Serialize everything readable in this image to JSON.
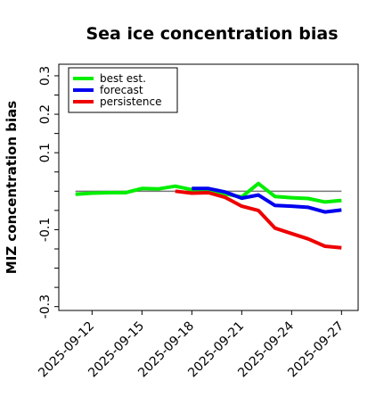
{
  "chart_data": {
    "type": "line",
    "title": "Sea ice concentration bias",
    "xlabel": "",
    "ylabel": "MIZ concentration bias",
    "xlim": [
      "2025-09-10",
      "2025-09-28"
    ],
    "ylim": [
      -0.31,
      0.33
    ],
    "yticks": [
      {
        "value": 0.3,
        "label": "0.3"
      },
      {
        "value": 0.2,
        "label": "0.2"
      },
      {
        "value": 0.1,
        "label": "0.1"
      },
      {
        "value": -0.1,
        "label": "-0.1"
      },
      {
        "value": -0.3,
        "label": "-0.3"
      }
    ],
    "yticks_unlabeled": [
      0.25,
      0.15,
      0.05,
      0.0,
      -0.05,
      -0.15,
      -0.2,
      -0.25
    ],
    "xticks": [
      {
        "date": "2025-09-12",
        "label": "2025-09-12",
        "color": "#000000"
      },
      {
        "date": "2025-09-15",
        "label": "2025-09-15",
        "color": "#000000"
      },
      {
        "date": "2025-09-18",
        "label": "2025-09-18",
        "color": "#228b22"
      },
      {
        "date": "2025-09-21",
        "label": "2025-09-21",
        "color": "#000000"
      },
      {
        "date": "2025-09-24",
        "label": "2025-09-24",
        "color": "#000000"
      },
      {
        "date": "2025-09-27",
        "label": "2025-09-27",
        "color": "#000000"
      }
    ],
    "reference_line": {
      "y": 0.0,
      "color": "#777777"
    },
    "legend": {
      "position": "top-left"
    },
    "series": [
      {
        "name": "best est.",
        "color": "#00ee00",
        "points": [
          {
            "x": "2025-09-11",
            "y": -0.008
          },
          {
            "x": "2025-09-12",
            "y": -0.005
          },
          {
            "x": "2025-09-13",
            "y": -0.004
          },
          {
            "x": "2025-09-14",
            "y": -0.004
          },
          {
            "x": "2025-09-15",
            "y": 0.007
          },
          {
            "x": "2025-09-16",
            "y": 0.006
          },
          {
            "x": "2025-09-17",
            "y": 0.013
          },
          {
            "x": "2025-09-18",
            "y": 0.004
          },
          {
            "x": "2025-09-19",
            "y": 0.003
          },
          {
            "x": "2025-09-20",
            "y": -0.007
          },
          {
            "x": "2025-09-21",
            "y": -0.015
          },
          {
            "x": "2025-09-22",
            "y": 0.02
          },
          {
            "x": "2025-09-23",
            "y": -0.014
          },
          {
            "x": "2025-09-24",
            "y": -0.017
          },
          {
            "x": "2025-09-25",
            "y": -0.019
          },
          {
            "x": "2025-09-26",
            "y": -0.028
          },
          {
            "x": "2025-09-27",
            "y": -0.024
          }
        ]
      },
      {
        "name": "forecast",
        "color": "#0000ee",
        "points": [
          {
            "x": "2025-09-18",
            "y": 0.007
          },
          {
            "x": "2025-09-19",
            "y": 0.007
          },
          {
            "x": "2025-09-20",
            "y": -0.002
          },
          {
            "x": "2025-09-21",
            "y": -0.018
          },
          {
            "x": "2025-09-22",
            "y": -0.01
          },
          {
            "x": "2025-09-23",
            "y": -0.037
          },
          {
            "x": "2025-09-24",
            "y": -0.039
          },
          {
            "x": "2025-09-25",
            "y": -0.042
          },
          {
            "x": "2025-09-26",
            "y": -0.054
          },
          {
            "x": "2025-09-27",
            "y": -0.049
          }
        ]
      },
      {
        "name": "persistence",
        "color": "#ee0000",
        "points": [
          {
            "x": "2025-09-17",
            "y": 0.0
          },
          {
            "x": "2025-09-18",
            "y": -0.005
          },
          {
            "x": "2025-09-19",
            "y": -0.004
          },
          {
            "x": "2025-09-20",
            "y": -0.016
          },
          {
            "x": "2025-09-21",
            "y": -0.039
          },
          {
            "x": "2025-09-22",
            "y": -0.05
          },
          {
            "x": "2025-09-23",
            "y": -0.096
          },
          {
            "x": "2025-09-24",
            "y": -0.11
          },
          {
            "x": "2025-09-25",
            "y": -0.124
          },
          {
            "x": "2025-09-26",
            "y": -0.143
          },
          {
            "x": "2025-09-27",
            "y": -0.147
          }
        ]
      }
    ]
  }
}
